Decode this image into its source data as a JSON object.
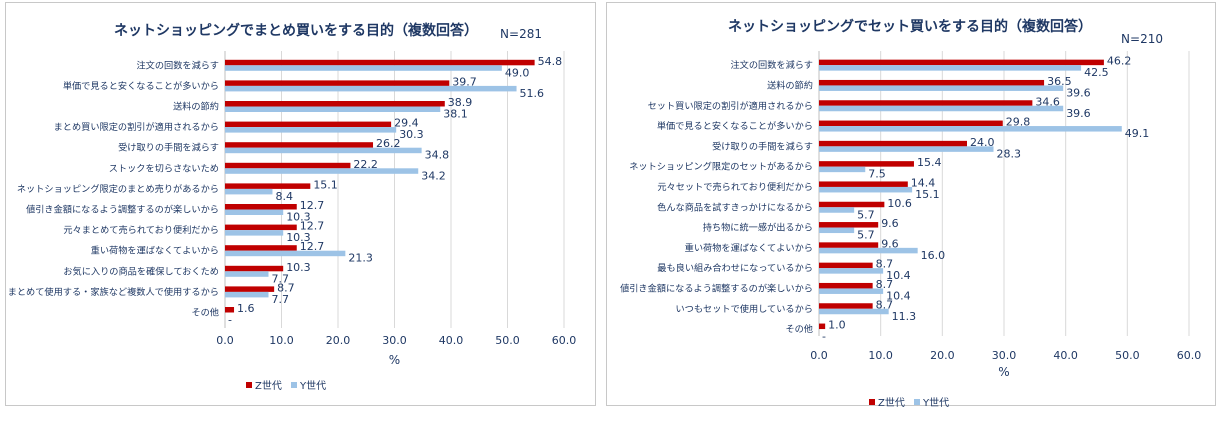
{
  "chart_data": [
    {
      "type": "bar",
      "orientation": "horizontal",
      "title": "ネットショッピングでまとめ買いをする目的（複数回答）",
      "note": "N=281",
      "categories": [
        "注文の回数を減らす",
        "単価で見ると安くなることが多いから",
        "送料の節約",
        "まとめ買い限定の割引が適用されるから",
        "受け取りの手間を減らす",
        "ストックを切らさないため",
        "ネットショッピング限定のまとめ売りがあるから",
        "値引き金額になるよう調整するのが楽しいから",
        "元々まとめて売られており便利だから",
        "重い荷物を運ばなくてよいから",
        "お気に入りの商品を確保しておくため",
        "まとめて使用する・家族など複数人で使用するから",
        "その他"
      ],
      "series": [
        {
          "name": "Z世代",
          "color": "#c00000",
          "values": [
            54.8,
            39.7,
            38.9,
            29.4,
            26.2,
            22.2,
            15.1,
            12.7,
            12.7,
            12.7,
            10.3,
            8.7,
            1.6
          ]
        },
        {
          "name": "Y世代",
          "color": "#9dc3e6",
          "values": [
            49.0,
            51.6,
            38.1,
            30.3,
            34.8,
            34.2,
            8.4,
            10.3,
            10.3,
            21.3,
            7.7,
            7.7,
            0
          ]
        }
      ],
      "value_labels": {
        "Z世代": [
          "54.8",
          "39.7",
          "38.9",
          "29.4",
          "26.2",
          "22.2",
          "15.1",
          "12.7",
          "12.7",
          "12.7",
          "10.3",
          "8.7",
          "1.6"
        ],
        "Y世代": [
          "49.0",
          "51.6",
          "38.1",
          "30.3",
          "34.8",
          "34.2",
          "8.4",
          "10.3",
          "10.3",
          "21.3",
          "7.7",
          "7.7",
          "-"
        ]
      },
      "xlim": [
        0,
        60
      ],
      "xticks": [
        "0.0",
        "10.0",
        "20.0",
        "30.0",
        "40.0",
        "50.0",
        "60.0"
      ],
      "xlabel": "%",
      "legend": [
        "Z世代",
        "Y世代"
      ]
    },
    {
      "type": "bar",
      "orientation": "horizontal",
      "title": "ネットショッピングでセット買いをする目的（複数回答）",
      "note": "N=210",
      "categories": [
        "注文の回数を減らす",
        "送料の節約",
        "セット買い限定の割引が適用されるから",
        "単価で見ると安くなることが多いから",
        "受け取りの手間を減らす",
        "ネットショッピング限定のセットがあるから",
        "元々セットで売られており便利だから",
        "色んな商品を試すきっかけになるから",
        "持ち物に統一感が出るから",
        "重い荷物を運ばなくてよいから",
        "最も良い組み合わせになっているから",
        "値引き金額になるよう調整するのが楽しいから",
        "いつもセットで使用しているから",
        "その他"
      ],
      "series": [
        {
          "name": "Z世代",
          "color": "#c00000",
          "values": [
            46.2,
            36.5,
            34.6,
            29.8,
            24.0,
            15.4,
            14.4,
            10.6,
            9.6,
            9.6,
            8.7,
            8.7,
            8.7,
            1.0
          ]
        },
        {
          "name": "Y世代",
          "color": "#9dc3e6",
          "values": [
            42.5,
            39.6,
            39.6,
            49.1,
            28.3,
            7.5,
            15.1,
            5.7,
            5.7,
            16.0,
            10.4,
            10.4,
            11.3,
            0
          ]
        }
      ],
      "value_labels": {
        "Z世代": [
          "46.2",
          "36.5",
          "34.6",
          "29.8",
          "24.0",
          "15.4",
          "14.4",
          "10.6",
          "9.6",
          "9.6",
          "8.7",
          "8.7",
          "8.7",
          "1.0"
        ],
        "Y世代": [
          "42.5",
          "39.6",
          "39.6",
          "49.1",
          "28.3",
          "7.5",
          "15.1",
          "5.7",
          "5.7",
          "16.0",
          "10.4",
          "10.4",
          "11.3",
          "-"
        ]
      },
      "xlim": [
        0,
        60
      ],
      "xticks": [
        "0.0",
        "10.0",
        "20.0",
        "30.0",
        "40.0",
        "50.0",
        "60.0"
      ],
      "xlabel": "%",
      "legend": [
        "Z世代",
        "Y世代"
      ]
    }
  ]
}
